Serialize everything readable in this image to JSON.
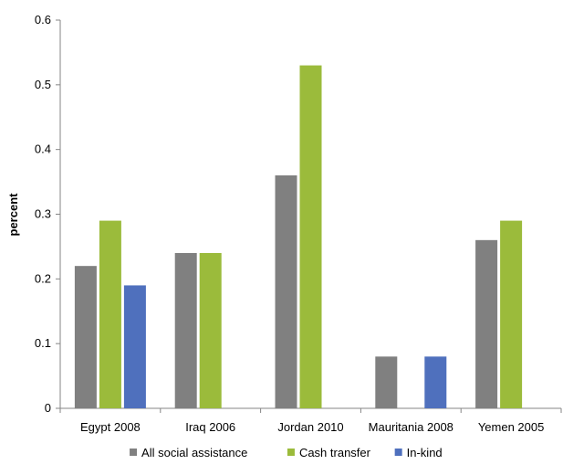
{
  "chart_data": {
    "type": "bar",
    "title": "",
    "xlabel": "",
    "ylabel": "percent",
    "ylim": [
      0,
      0.6
    ],
    "yticks": [
      "0",
      "0.1",
      "0.2",
      "0.3",
      "0.4",
      "0.5",
      "0.6"
    ],
    "categories": [
      "Egypt 2008",
      "Iraq 2006",
      "Jordan 2010",
      "Mauritania 2008",
      "Yemen 2005"
    ],
    "series": [
      {
        "name": "All social assistance",
        "color": "#808080",
        "values": [
          0.22,
          0.24,
          0.36,
          0.08,
          0.26
        ]
      },
      {
        "name": "Cash transfer",
        "color": "#9bbb3b",
        "values": [
          0.29,
          0.24,
          0.53,
          null,
          0.29
        ]
      },
      {
        "name": "In-kind",
        "color": "#4f70bd",
        "values": [
          0.19,
          null,
          null,
          0.08,
          null
        ]
      }
    ],
    "grid": false,
    "legend_position": "bottom"
  }
}
